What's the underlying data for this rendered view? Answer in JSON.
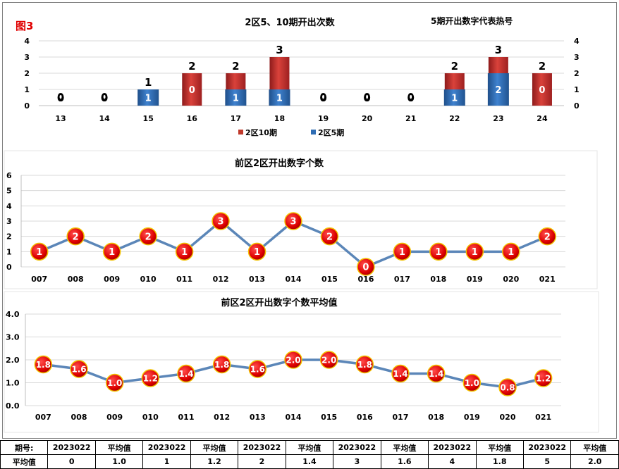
{
  "figure_label": "图3",
  "hot_note": "5期开出数字代表热号",
  "chart_data": [
    {
      "type": "bar",
      "title": "2区5、10期开出次数",
      "categories": [
        "13",
        "14",
        "15",
        "16",
        "17",
        "18",
        "19",
        "20",
        "21",
        "22",
        "23",
        "24"
      ],
      "series": [
        {
          "name": "2区10期",
          "color": "#c0392b",
          "values": [
            0,
            0,
            1,
            2,
            2,
            3,
            0,
            0,
            0,
            2,
            3,
            2
          ]
        },
        {
          "name": "2区5期",
          "color": "#2e6db4",
          "values": [
            0,
            0,
            1,
            0,
            1,
            1,
            0,
            0,
            0,
            1,
            2,
            0
          ]
        }
      ],
      "ylim": [
        0,
        4
      ],
      "yticks": [
        "0",
        "1",
        "2",
        "3",
        "4"
      ],
      "grid": true,
      "legend": "bottom"
    },
    {
      "type": "line",
      "title": "前区2区开出数字个数",
      "x": [
        "007",
        "008",
        "009",
        "010",
        "011",
        "012",
        "013",
        "014",
        "015",
        "016",
        "017",
        "018",
        "019",
        "020",
        "021"
      ],
      "values": [
        1,
        2,
        1,
        2,
        1,
        3,
        1,
        3,
        2,
        0,
        1,
        1,
        1,
        1,
        2
      ],
      "labels": [
        "1",
        "2",
        "1",
        "2",
        "1",
        "3",
        "1",
        "3",
        "2",
        "0",
        "1",
        "1",
        "1",
        "1",
        "2"
      ],
      "ylim": [
        0,
        6
      ],
      "yticks": [
        "0",
        "1",
        "2",
        "3",
        "4",
        "5",
        "6"
      ],
      "grid": true
    },
    {
      "type": "line",
      "title": "前区2区开出数字个数平均值",
      "x": [
        "007",
        "008",
        "009",
        "010",
        "011",
        "012",
        "013",
        "014",
        "015",
        "016",
        "017",
        "018",
        "019",
        "020",
        "021"
      ],
      "values": [
        1.8,
        1.6,
        1.0,
        1.2,
        1.4,
        1.8,
        1.6,
        2.0,
        2.0,
        1.8,
        1.4,
        1.4,
        1.0,
        0.8,
        1.2
      ],
      "labels": [
        "1.8",
        "1.6",
        "1.0",
        "1.2",
        "1.4",
        "1.8",
        "1.6",
        "2.0",
        "2.0",
        "1.8",
        "1.4",
        "1.4",
        "1.0",
        "0.8",
        "1.2"
      ],
      "ylim": [
        0,
        4
      ],
      "yticks": [
        "0.0",
        "1.0",
        "2.0",
        "3.0",
        "4.0"
      ],
      "grid": true
    }
  ],
  "table": {
    "rows": [
      [
        "期号:",
        "2023022",
        "平均值",
        "2023022",
        "平均值",
        "2023022",
        "平均值",
        "2023022",
        "平均值",
        "2023022",
        "平均值",
        "2023022",
        "平均值"
      ],
      [
        "平均值",
        "0",
        "1.0",
        "1",
        "1.2",
        "2",
        "1.4",
        "3",
        "1.6",
        "4",
        "1.8",
        "5",
        "2.0"
      ]
    ]
  }
}
